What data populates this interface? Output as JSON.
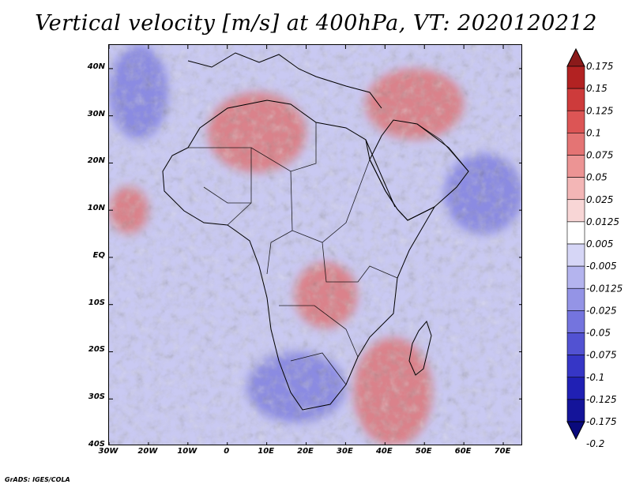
{
  "title": "Vertical velocity [m/s] at 400hPa, VT: 2020120212",
  "footer": "GrADS: IGES/COLA",
  "chart_data": {
    "type": "heatmap",
    "title": "Vertical velocity [m/s] at 400hPa, VT: 2020120212",
    "variable": "Vertical velocity",
    "units": "m/s",
    "level": "400hPa",
    "valid_time": "2020120212",
    "xlabel": "",
    "ylabel": "",
    "xlim": [
      -30,
      75
    ],
    "ylim": [
      -40,
      45
    ],
    "x_ticks": [
      {
        "value": -30,
        "label": "30W"
      },
      {
        "value": -20,
        "label": "20W"
      },
      {
        "value": -10,
        "label": "10W"
      },
      {
        "value": 0,
        "label": "0"
      },
      {
        "value": 10,
        "label": "10E"
      },
      {
        "value": 20,
        "label": "20E"
      },
      {
        "value": 30,
        "label": "30E"
      },
      {
        "value": 40,
        "label": "40E"
      },
      {
        "value": 50,
        "label": "50E"
      },
      {
        "value": 60,
        "label": "60E"
      },
      {
        "value": 70,
        "label": "70E"
      }
    ],
    "y_ticks": [
      {
        "value": 40,
        "label": "40N"
      },
      {
        "value": 30,
        "label": "30N"
      },
      {
        "value": 20,
        "label": "20N"
      },
      {
        "value": 10,
        "label": "10N"
      },
      {
        "value": 0,
        "label": "EQ"
      },
      {
        "value": -10,
        "label": "10S"
      },
      {
        "value": -20,
        "label": "20S"
      },
      {
        "value": -30,
        "label": "30S"
      },
      {
        "value": -40,
        "label": "40S"
      }
    ],
    "colorbar": {
      "levels": [
        "0.175",
        "0.15",
        "0.125",
        "0.1",
        "0.075",
        "0.05",
        "0.025",
        "0.0125",
        "0.005",
        "-0.005",
        "-0.0125",
        "-0.025",
        "-0.05",
        "-0.075",
        "-0.1",
        "-0.125",
        "-0.175",
        "-0.2"
      ],
      "colors": [
        "#8b1a1a",
        "#b22222",
        "#cd3b3b",
        "#dc5555",
        "#e47474",
        "#ec9494",
        "#f3b6b6",
        "#f8d6d6",
        "#ffffff",
        "#d6d6f6",
        "#b4b4ee",
        "#9494e6",
        "#7474de",
        "#5252d2",
        "#3636c6",
        "#2020b4",
        "#14149a",
        "#0a0a7c"
      ]
    },
    "features": [
      {
        "name": "ascent over Congo basin",
        "sign": "positive",
        "lon": [
          17,
          33
        ],
        "lat": [
          -15,
          -1
        ]
      },
      {
        "name": "ascent band over Mozambique channel",
        "sign": "positive",
        "lon": [
          32,
          52
        ],
        "lat": [
          -40,
          -17
        ]
      },
      {
        "name": "ascent over Middle East",
        "sign": "positive",
        "lon": [
          35,
          60
        ],
        "lat": [
          25,
          40
        ]
      },
      {
        "name": "ascent over northwest Sahara",
        "sign": "positive",
        "lon": [
          -5,
          20
        ],
        "lat": [
          18,
          35
        ]
      },
      {
        "name": "ascent west of Senegal",
        "sign": "positive",
        "lon": [
          -30,
          -20
        ],
        "lat": [
          5,
          15
        ]
      },
      {
        "name": "subsidence over North Atlantic",
        "sign": "negative",
        "lon": [
          -30,
          -15
        ],
        "lat": [
          25,
          45
        ]
      },
      {
        "name": "subsidence over southern Africa",
        "sign": "negative",
        "lon": [
          5,
          30
        ],
        "lat": [
          -35,
          -20
        ]
      },
      {
        "name": "subsidence over Arabian Sea",
        "sign": "negative",
        "lon": [
          55,
          75
        ],
        "lat": [
          5,
          22
        ]
      }
    ]
  }
}
